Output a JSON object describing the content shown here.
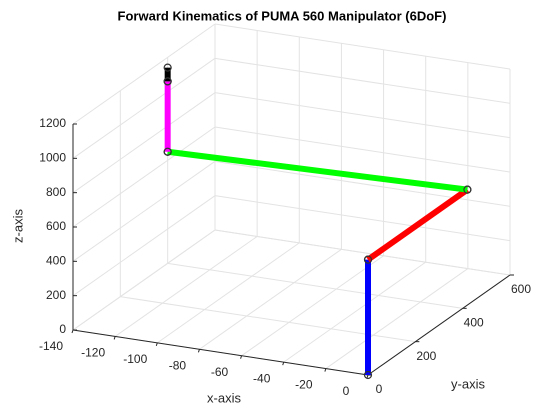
{
  "chart_data": {
    "type": "line3d",
    "title": "Forward Kinematics of PUMA 560 Manipulator (6DoF)",
    "xlabel": "x-axis",
    "ylabel": "y-axis",
    "zlabel": "z-axis",
    "xlim": [
      -140,
      0
    ],
    "ylim": [
      0,
      600
    ],
    "zlim": [
      0,
      1200
    ],
    "xticks": [
      -140,
      -120,
      -100,
      -80,
      -60,
      -40,
      -20,
      0
    ],
    "yticks": [
      0,
      200,
      400,
      600
    ],
    "zticks": [
      0,
      200,
      400,
      600,
      800,
      1000,
      1200
    ],
    "grid": true,
    "series": [
      {
        "color": "#0000ff",
        "x": [
          0,
          0
        ],
        "y": [
          0,
          0
        ],
        "z": [
          0,
          672
        ]
      },
      {
        "color": "#ff0000",
        "x": [
          0,
          0
        ],
        "y": [
          0,
          420
        ],
        "z": [
          672,
          672
        ]
      },
      {
        "color": "#00ff00",
        "x": [
          0,
          -140
        ],
        "y": [
          420,
          400
        ],
        "z": [
          672,
          650
        ]
      },
      {
        "color": "#ff00ff",
        "x": [
          -140,
          -140
        ],
        "y": [
          400,
          400
        ],
        "z": [
          650,
          1060
        ]
      },
      {
        "color": "#000000",
        "x": [
          -140,
          -140
        ],
        "y": [
          400,
          400
        ],
        "z": [
          1060,
          1140
        ]
      }
    ]
  }
}
